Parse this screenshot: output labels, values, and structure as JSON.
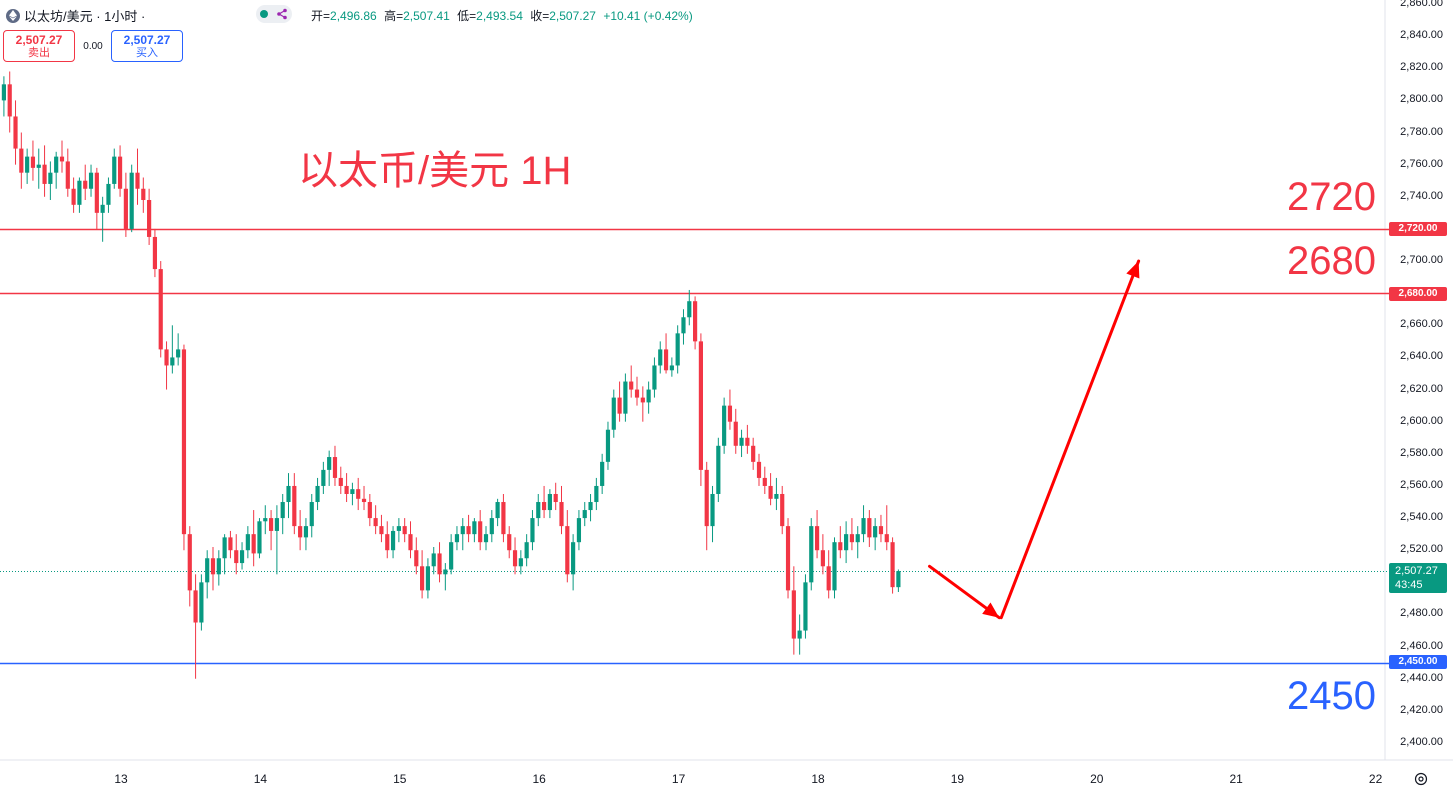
{
  "header": {
    "symbol": "以太坊/美元 · 1小时 ·",
    "open_label": "开=",
    "open": "2,496.86",
    "high_label": "高=",
    "high": "2,507.41",
    "low_label": "低=",
    "low": "2,493.54",
    "close_label": "收=",
    "close": "2,507.27",
    "change": "+10.41 (+0.42%)"
  },
  "trade": {
    "sell_price": "2,507.27",
    "sell_label": "卖出",
    "spread": "0.00",
    "buy_price": "2,507.27",
    "buy_label": "买入"
  },
  "annotations": {
    "title": "以太币/美元 1H",
    "level_2720": "2720",
    "level_2680": "2680",
    "level_2450": "2450"
  },
  "price_tags": {
    "tag_2720": "2,720.00",
    "tag_2680": "2,680.00",
    "tag_2450": "2,450.00",
    "current": "2,507.27",
    "countdown": "43:45"
  },
  "colors": {
    "up": "#089981",
    "down": "#f23645",
    "resistance": "#f23645",
    "support": "#2962ff"
  },
  "chart_data": {
    "type": "candlestick",
    "title": "以太币/美元 1H",
    "ylim": [
      2390,
      2860
    ],
    "y_ticks": [
      "2,860.00",
      "2,840.00",
      "2,820.00",
      "2,800.00",
      "2,780.00",
      "2,760.00",
      "2,740.00",
      "2,720.00",
      "2,700.00",
      "2,680.00",
      "2,660.00",
      "2,640.00",
      "2,620.00",
      "2,600.00",
      "2,580.00",
      "2,560.00",
      "2,540.00",
      "2,520.00",
      "2,500.00",
      "2,480.00",
      "2,460.00",
      "2,440.00",
      "2,420.00",
      "2,400.00"
    ],
    "x_ticks": [
      "13",
      "14",
      "15",
      "16",
      "17",
      "18",
      "19",
      "20",
      "21",
      "22"
    ],
    "horizontal_lines": [
      {
        "value": 2720,
        "color": "#f23645"
      },
      {
        "value": 2680,
        "color": "#f23645"
      },
      {
        "value": 2450,
        "color": "#2962ff"
      }
    ],
    "current_price": 2507.27,
    "projection_path": [
      {
        "day": 18.8,
        "price": 2510
      },
      {
        "day": 19.3,
        "price": 2478
      },
      {
        "day": 20.3,
        "price": 2700
      }
    ],
    "candles_start_day": 12.16,
    "candles_per_day": 24,
    "candles": [
      [
        2800,
        2815,
        2790,
        2810
      ],
      [
        2810,
        2818,
        2780,
        2790
      ],
      [
        2790,
        2800,
        2760,
        2770
      ],
      [
        2770,
        2780,
        2745,
        2755
      ],
      [
        2755,
        2770,
        2748,
        2765
      ],
      [
        2765,
        2775,
        2750,
        2758
      ],
      [
        2758,
        2770,
        2745,
        2760
      ],
      [
        2760,
        2772,
        2740,
        2748
      ],
      [
        2748,
        2762,
        2738,
        2755
      ],
      [
        2755,
        2768,
        2745,
        2765
      ],
      [
        2765,
        2775,
        2755,
        2762
      ],
      [
        2762,
        2770,
        2740,
        2745
      ],
      [
        2745,
        2752,
        2730,
        2735
      ],
      [
        2735,
        2752,
        2730,
        2750
      ],
      [
        2750,
        2760,
        2738,
        2745
      ],
      [
        2745,
        2760,
        2740,
        2755
      ],
      [
        2755,
        2758,
        2720,
        2730
      ],
      [
        2730,
        2740,
        2712,
        2735
      ],
      [
        2735,
        2752,
        2730,
        2748
      ],
      [
        2748,
        2770,
        2745,
        2765
      ],
      [
        2765,
        2772,
        2740,
        2745
      ],
      [
        2745,
        2755,
        2715,
        2720
      ],
      [
        2720,
        2760,
        2718,
        2755
      ],
      [
        2755,
        2770,
        2735,
        2745
      ],
      [
        2745,
        2752,
        2730,
        2738
      ],
      [
        2738,
        2745,
        2710,
        2715
      ],
      [
        2715,
        2720,
        2690,
        2695
      ],
      [
        2695,
        2700,
        2640,
        2645
      ],
      [
        2645,
        2650,
        2620,
        2635
      ],
      [
        2635,
        2660,
        2630,
        2640
      ],
      [
        2640,
        2655,
        2635,
        2645
      ],
      [
        2645,
        2648,
        2520,
        2530
      ],
      [
        2530,
        2535,
        2485,
        2495
      ],
      [
        2495,
        2505,
        2440,
        2475
      ],
      [
        2475,
        2505,
        2470,
        2500
      ],
      [
        2500,
        2520,
        2490,
        2515
      ],
      [
        2515,
        2522,
        2495,
        2505
      ],
      [
        2505,
        2520,
        2498,
        2515
      ],
      [
        2515,
        2530,
        2505,
        2528
      ],
      [
        2528,
        2532,
        2515,
        2520
      ],
      [
        2520,
        2530,
        2505,
        2512
      ],
      [
        2512,
        2525,
        2508,
        2520
      ],
      [
        2520,
        2535,
        2515,
        2530
      ],
      [
        2530,
        2545,
        2510,
        2518
      ],
      [
        2518,
        2540,
        2515,
        2538
      ],
      [
        2538,
        2548,
        2530,
        2540
      ],
      [
        2540,
        2545,
        2520,
        2532
      ],
      [
        2532,
        2548,
        2505,
        2540
      ],
      [
        2540,
        2555,
        2530,
        2550
      ],
      [
        2550,
        2568,
        2540,
        2560
      ],
      [
        2560,
        2568,
        2530,
        2535
      ],
      [
        2535,
        2545,
        2520,
        2528
      ],
      [
        2528,
        2540,
        2520,
        2535
      ],
      [
        2535,
        2555,
        2528,
        2550
      ],
      [
        2550,
        2565,
        2545,
        2560
      ],
      [
        2560,
        2575,
        2555,
        2570
      ],
      [
        2570,
        2582,
        2560,
        2578
      ],
      [
        2578,
        2585,
        2560,
        2565
      ],
      [
        2565,
        2572,
        2555,
        2560
      ],
      [
        2560,
        2568,
        2550,
        2555
      ],
      [
        2555,
        2562,
        2548,
        2558
      ],
      [
        2558,
        2565,
        2545,
        2552
      ],
      [
        2552,
        2560,
        2545,
        2550
      ],
      [
        2550,
        2555,
        2535,
        2540
      ],
      [
        2540,
        2548,
        2530,
        2535
      ],
      [
        2535,
        2542,
        2525,
        2530
      ],
      [
        2530,
        2538,
        2515,
        2520
      ],
      [
        2520,
        2535,
        2515,
        2532
      ],
      [
        2532,
        2540,
        2525,
        2535
      ],
      [
        2535,
        2540,
        2525,
        2530
      ],
      [
        2530,
        2538,
        2515,
        2520
      ],
      [
        2520,
        2528,
        2505,
        2510
      ],
      [
        2510,
        2520,
        2490,
        2495
      ],
      [
        2495,
        2515,
        2490,
        2510
      ],
      [
        2510,
        2522,
        2505,
        2518
      ],
      [
        2518,
        2525,
        2500,
        2505
      ],
      [
        2505,
        2512,
        2495,
        2508
      ],
      [
        2508,
        2530,
        2505,
        2525
      ],
      [
        2525,
        2535,
        2520,
        2530
      ],
      [
        2530,
        2540,
        2520,
        2535
      ],
      [
        2535,
        2542,
        2525,
        2530
      ],
      [
        2530,
        2540,
        2525,
        2538
      ],
      [
        2538,
        2545,
        2520,
        2525
      ],
      [
        2525,
        2535,
        2520,
        2530
      ],
      [
        2530,
        2545,
        2525,
        2540
      ],
      [
        2540,
        2552,
        2535,
        2550
      ],
      [
        2550,
        2555,
        2525,
        2530
      ],
      [
        2530,
        2535,
        2515,
        2520
      ],
      [
        2520,
        2528,
        2505,
        2510
      ],
      [
        2510,
        2520,
        2505,
        2515
      ],
      [
        2515,
        2530,
        2510,
        2525
      ],
      [
        2525,
        2545,
        2520,
        2540
      ],
      [
        2540,
        2555,
        2535,
        2550
      ],
      [
        2550,
        2560,
        2540,
        2545
      ],
      [
        2545,
        2558,
        2540,
        2555
      ],
      [
        2555,
        2562,
        2545,
        2550
      ],
      [
        2550,
        2560,
        2530,
        2535
      ],
      [
        2535,
        2545,
        2500,
        2505
      ],
      [
        2505,
        2530,
        2495,
        2525
      ],
      [
        2525,
        2545,
        2520,
        2540
      ],
      [
        2540,
        2550,
        2535,
        2545
      ],
      [
        2545,
        2555,
        2538,
        2550
      ],
      [
        2550,
        2565,
        2545,
        2560
      ],
      [
        2560,
        2580,
        2555,
        2575
      ],
      [
        2575,
        2600,
        2570,
        2595
      ],
      [
        2595,
        2620,
        2590,
        2615
      ],
      [
        2615,
        2625,
        2600,
        2605
      ],
      [
        2605,
        2630,
        2600,
        2625
      ],
      [
        2625,
        2635,
        2615,
        2620
      ],
      [
        2620,
        2628,
        2610,
        2615
      ],
      [
        2615,
        2622,
        2600,
        2612
      ],
      [
        2612,
        2625,
        2605,
        2620
      ],
      [
        2620,
        2640,
        2615,
        2635
      ],
      [
        2635,
        2650,
        2630,
        2645
      ],
      [
        2645,
        2655,
        2630,
        2632
      ],
      [
        2632,
        2640,
        2628,
        2635
      ],
      [
        2635,
        2660,
        2630,
        2655
      ],
      [
        2655,
        2670,
        2648,
        2665
      ],
      [
        2665,
        2682,
        2660,
        2675
      ],
      [
        2675,
        2678,
        2645,
        2650
      ],
      [
        2650,
        2655,
        2560,
        2570
      ],
      [
        2570,
        2575,
        2520,
        2535
      ],
      [
        2535,
        2560,
        2525,
        2555
      ],
      [
        2555,
        2590,
        2550,
        2585
      ],
      [
        2585,
        2615,
        2580,
        2610
      ],
      [
        2610,
        2620,
        2595,
        2600
      ],
      [
        2600,
        2608,
        2580,
        2585
      ],
      [
        2585,
        2595,
        2578,
        2590
      ],
      [
        2590,
        2598,
        2580,
        2585
      ],
      [
        2585,
        2590,
        2570,
        2575
      ],
      [
        2575,
        2580,
        2560,
        2565
      ],
      [
        2565,
        2572,
        2555,
        2560
      ],
      [
        2560,
        2568,
        2548,
        2552
      ],
      [
        2552,
        2565,
        2545,
        2555
      ],
      [
        2555,
        2560,
        2530,
        2535
      ],
      [
        2535,
        2540,
        2490,
        2495
      ],
      [
        2495,
        2510,
        2455,
        2465
      ],
      [
        2465,
        2480,
        2455,
        2470
      ],
      [
        2470,
        2505,
        2465,
        2500
      ],
      [
        2500,
        2540,
        2495,
        2535
      ],
      [
        2535,
        2545,
        2515,
        2520
      ],
      [
        2520,
        2530,
        2505,
        2510
      ],
      [
        2510,
        2520,
        2490,
        2495
      ],
      [
        2495,
        2528,
        2490,
        2525
      ],
      [
        2525,
        2535,
        2515,
        2520
      ],
      [
        2520,
        2538,
        2512,
        2530
      ],
      [
        2530,
        2540,
        2520,
        2525
      ],
      [
        2525,
        2535,
        2515,
        2530
      ],
      [
        2530,
        2548,
        2525,
        2540
      ],
      [
        2540,
        2545,
        2522,
        2528
      ],
      [
        2528,
        2540,
        2520,
        2535
      ],
      [
        2535,
        2542,
        2525,
        2530
      ],
      [
        2530,
        2548,
        2520,
        2525
      ],
      [
        2525,
        2528,
        2493,
        2497
      ],
      [
        2497,
        2508,
        2494,
        2507
      ]
    ]
  }
}
